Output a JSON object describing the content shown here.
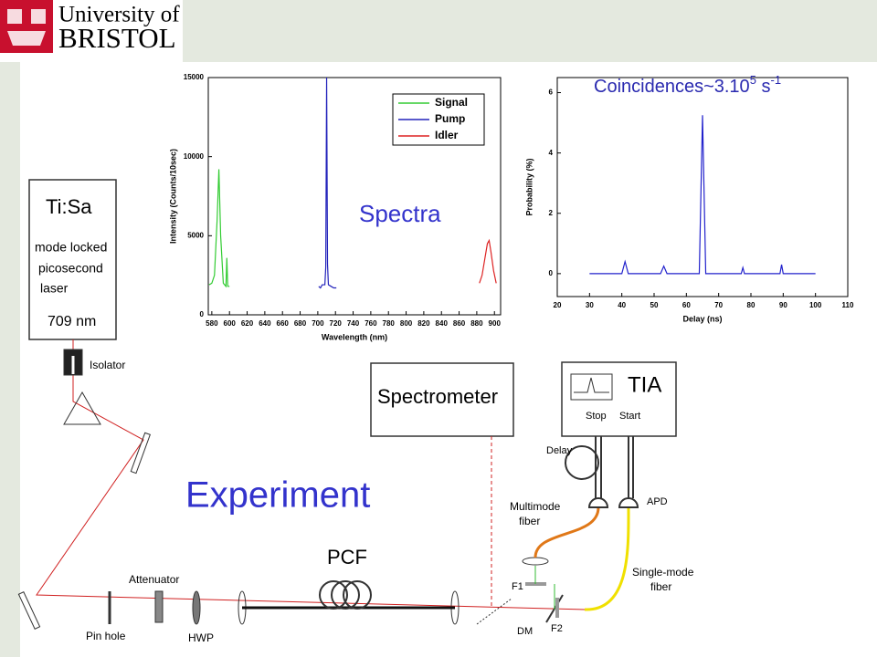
{
  "header": {
    "line1": "University of",
    "line2": "BRISTOL"
  },
  "chart_data": [
    {
      "type": "line",
      "annotation": "Spectra",
      "xlabel": "Wavelength (nm)",
      "ylabel": "Intensity (Counts/10sec)",
      "xlim": [
        576,
        907
      ],
      "ylim": [
        0,
        15000
      ],
      "xticks": [
        580,
        600,
        620,
        640,
        660,
        680,
        700,
        720,
        740,
        760,
        780,
        800,
        820,
        840,
        860,
        880,
        900
      ],
      "yticks": [
        0,
        5000,
        10000,
        15000
      ],
      "legend": "upper right",
      "series": [
        {
          "name": "Signal",
          "color": "#33cc33",
          "x": [
            577,
            580,
            583,
            586,
            588,
            590,
            593,
            596,
            597,
            598,
            600
          ],
          "values": [
            1900,
            2000,
            2500,
            6000,
            9200,
            5000,
            2000,
            1800,
            3600,
            1800,
            1800
          ]
        },
        {
          "name": "Pump",
          "color": "#2222bb",
          "x": [
            701,
            703,
            705,
            708,
            709,
            710,
            711,
            712,
            715,
            718,
            721
          ],
          "values": [
            1800,
            1700,
            1900,
            1900,
            3000,
            15000,
            3200,
            1900,
            1800,
            1700,
            1700
          ]
        },
        {
          "name": "Idler",
          "color": "#dd2222",
          "x": [
            883,
            886,
            889,
            892,
            894,
            896,
            899,
            902
          ],
          "values": [
            2000,
            2500,
            3500,
            4500,
            4700,
            4000,
            2800,
            2000
          ]
        }
      ]
    },
    {
      "type": "line",
      "title": {
        "base": "Coincidences~3.10",
        "exp": "5",
        "unit": " s",
        "unit_exp": "-1"
      },
      "xlabel": "Delay (ns)",
      "ylabel": "Probability (%)",
      "xlim": [
        20,
        110
      ],
      "ylim": [
        -0.76,
        6.5
      ],
      "xticks": [
        20,
        30,
        40,
        50,
        60,
        70,
        80,
        90,
        100,
        110
      ],
      "yticks": [
        0,
        2,
        4,
        6
      ],
      "series": [
        {
          "color": "#2222cc",
          "x": [
            30,
            40,
            41,
            42,
            52,
            53,
            54,
            64,
            65,
            66,
            77,
            77.5,
            78,
            89,
            89.5,
            90,
            100
          ],
          "values": [
            0,
            0,
            0.4,
            0,
            0,
            0.25,
            0,
            0,
            5.25,
            0,
            0,
            0.2,
            0,
            0,
            0.3,
            0,
            0
          ]
        }
      ]
    }
  ],
  "diagram": {
    "laser": [
      "Ti:Sa",
      "mode locked",
      "picosecond",
      "laser",
      "709 nm"
    ],
    "labels": [
      "Isolator",
      "Spectrometer",
      "TIA",
      "Stop",
      "Start",
      "Delay",
      "Multimode",
      "fiber",
      "APD",
      "Experiment",
      "PCF",
      "Attenuator",
      "Pin hole",
      "HWP",
      "F1",
      "DM",
      "F2",
      "Single-mode",
      "fiber"
    ]
  }
}
